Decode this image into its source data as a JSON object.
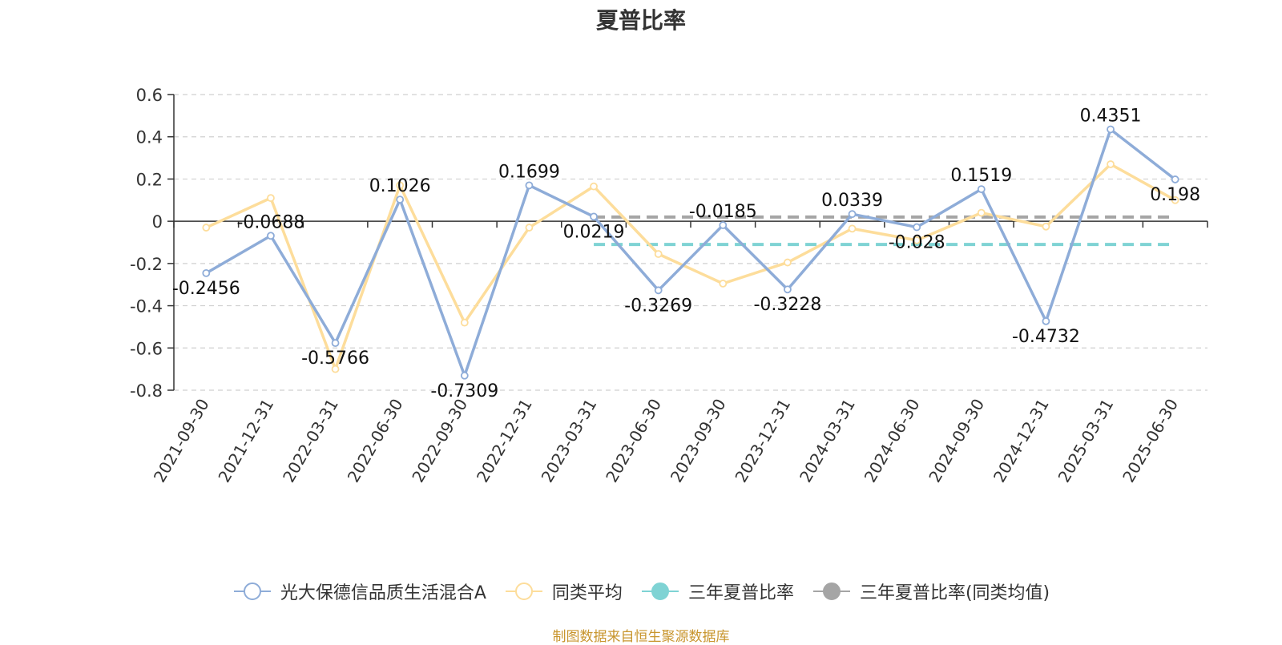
{
  "chart_data": {
    "type": "line",
    "title": "夏普比率",
    "categories": [
      "2021-09-30",
      "2021-12-31",
      "2022-03-31",
      "2022-06-30",
      "2022-09-30",
      "2022-12-31",
      "2023-03-31",
      "2023-06-30",
      "2023-09-30",
      "2023-12-31",
      "2024-03-31",
      "2024-06-30",
      "2024-09-30",
      "2024-12-31",
      "2025-03-31",
      "2025-06-30"
    ],
    "ylim": [
      -0.8,
      0.6
    ],
    "yticks": [
      0.6,
      0.4,
      0.2,
      0,
      -0.2,
      -0.4,
      -0.6,
      -0.8
    ],
    "ytick_labels": [
      "0.6",
      "0.4",
      "0.2",
      "0",
      "-0.2",
      "-0.4",
      "-0.6",
      "-0.8"
    ],
    "grid": true,
    "legend_position": "bottom",
    "series": [
      {
        "name": "光大保德信品质生活混合A",
        "color": "#8eacd8",
        "values": [
          -0.2456,
          -0.0688,
          -0.5766,
          0.1026,
          -0.7309,
          0.1699,
          0.0219,
          -0.3269,
          -0.0185,
          -0.3228,
          0.0339,
          -0.028,
          0.1519,
          -0.4732,
          0.4351,
          0.198
        ],
        "data_labels": [
          "-0.2456",
          "-0.0688",
          "-0.5766",
          "0.1026",
          "-0.7309",
          "0.1699",
          "0.0219",
          "-0.3269",
          "-0.0185",
          "-0.3228",
          "0.0339",
          "-0.028",
          "0.1519",
          "-0.4732",
          "0.4351",
          "0.198"
        ]
      },
      {
        "name": "同类平均",
        "color": "#fddd9b",
        "values": [
          -0.03,
          0.11,
          -0.7,
          0.17,
          -0.48,
          -0.03,
          0.165,
          -0.155,
          -0.295,
          -0.195,
          -0.035,
          -0.09,
          0.04,
          -0.025,
          0.27,
          0.1
        ]
      },
      {
        "name": "三年夏普比率",
        "color": "#7fd3d4",
        "type": "dashed-reference",
        "value": -0.11,
        "from_category": "2023-03-31",
        "to_category": "2025-06-30"
      },
      {
        "name": "三年夏普比率(同类均值)",
        "color": "#a5a5a5",
        "type": "dashed-reference",
        "value": 0.02,
        "from_category": "2023-03-31",
        "to_category": "2025-06-30"
      }
    ]
  },
  "legend": {
    "items": [
      {
        "label": "光大保德信品质生活混合A",
        "color": "#8eacd8",
        "marker": "hollow"
      },
      {
        "label": "同类平均",
        "color": "#fddd9b",
        "marker": "hollow"
      },
      {
        "label": "三年夏普比率",
        "color": "#7fd3d4",
        "marker": "filled"
      },
      {
        "label": "三年夏普比率(同类均值)",
        "color": "#a5a5a5",
        "marker": "filled"
      }
    ]
  },
  "source_note": "制图数据来自恒生聚源数据库"
}
